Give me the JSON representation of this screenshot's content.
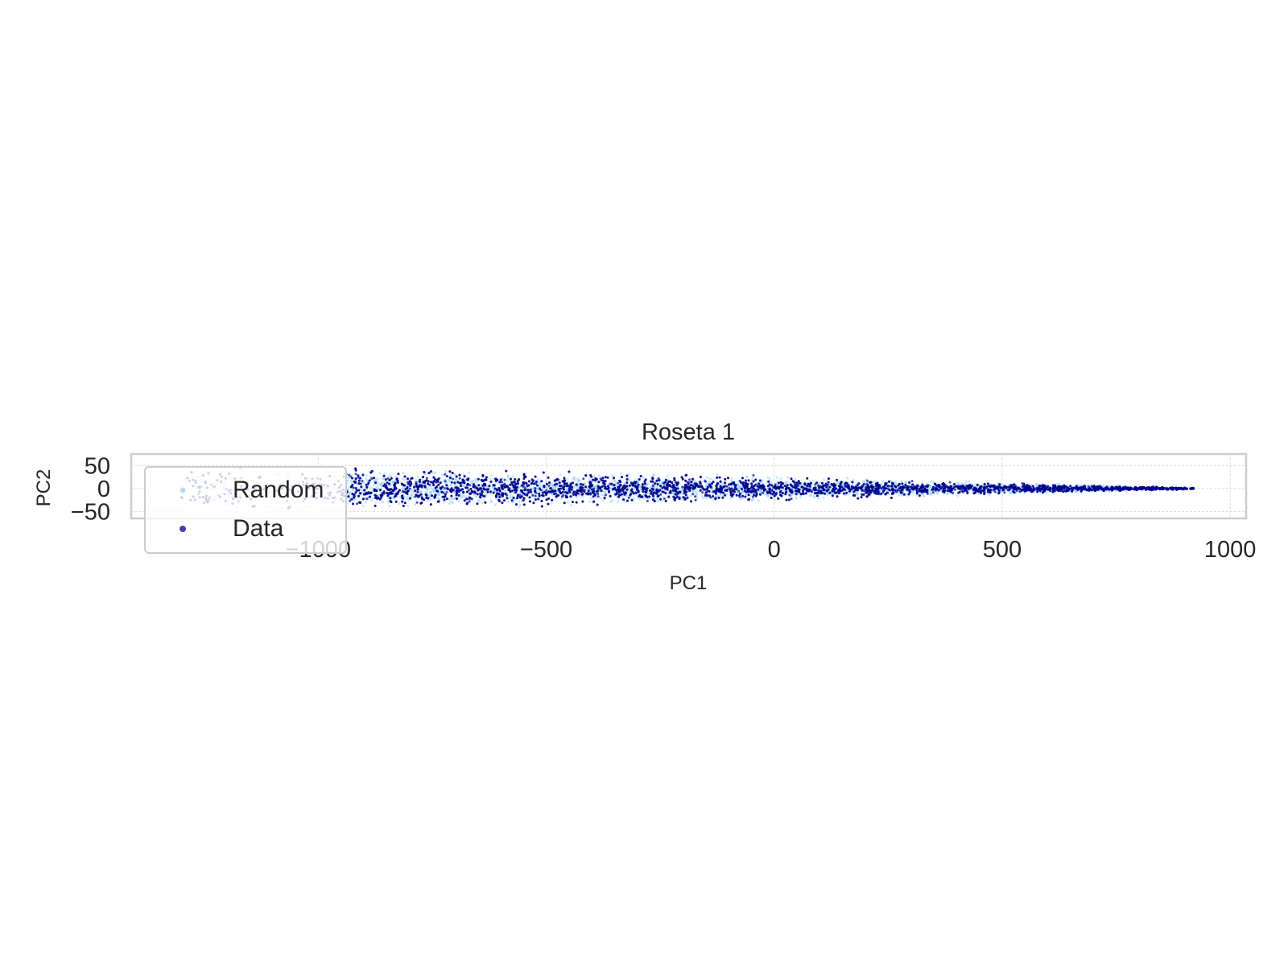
{
  "chart_data": {
    "type": "scatter",
    "title": "Roseta 1",
    "xlabel": "PC1",
    "ylabel": "PC2",
    "xlim": [
      -1410,
      1035
    ],
    "ylim": [
      -65,
      75
    ],
    "xticks": [
      -1000,
      -500,
      0,
      500,
      1000
    ],
    "xtick_labels": [
      "−1000",
      "−500",
      "0",
      "500",
      "1000"
    ],
    "yticks": [
      50,
      0,
      -50
    ],
    "ytick_labels": [
      "50",
      "0",
      "−50"
    ],
    "grid": true,
    "legend": {
      "placement": "lower-left",
      "entries": [
        "Random",
        "Data"
      ]
    },
    "series": [
      {
        "name": "Random",
        "color": "#87cefa",
        "marker": "dot",
        "description_shape": "wedge envelope",
        "envelope": [
          {
            "x": -1300,
            "ymin": -55,
            "ymax": 55
          },
          {
            "x": -1000,
            "ymin": -52,
            "ymax": 52
          },
          {
            "x": -500,
            "ymin": -42,
            "ymax": 42
          },
          {
            "x": 0,
            "ymin": -30,
            "ymax": 30
          },
          {
            "x": 500,
            "ymin": -16,
            "ymax": 16
          },
          {
            "x": 780,
            "ymin": -8,
            "ymax": 8
          }
        ],
        "count_estimate": 3000
      },
      {
        "name": "Data",
        "color": "#00008b",
        "marker": "dot",
        "envelope": [
          {
            "x": -1300,
            "ymin": -55,
            "ymax": 55
          },
          {
            "x": -1000,
            "ymin": -52,
            "ymax": 52
          },
          {
            "x": -500,
            "ymin": -42,
            "ymax": 42
          },
          {
            "x": 0,
            "ymin": -30,
            "ymax": 30
          },
          {
            "x": 500,
            "ymin": -14,
            "ymax": 14
          },
          {
            "x": 920,
            "ymin": -2,
            "ymax": 2
          }
        ],
        "count_estimate": 5000
      }
    ]
  },
  "colors": {
    "random": "#87cefa",
    "data": "#00008b",
    "spine": "#cccccc",
    "grid": "#dddddd",
    "text": "#262626"
  }
}
